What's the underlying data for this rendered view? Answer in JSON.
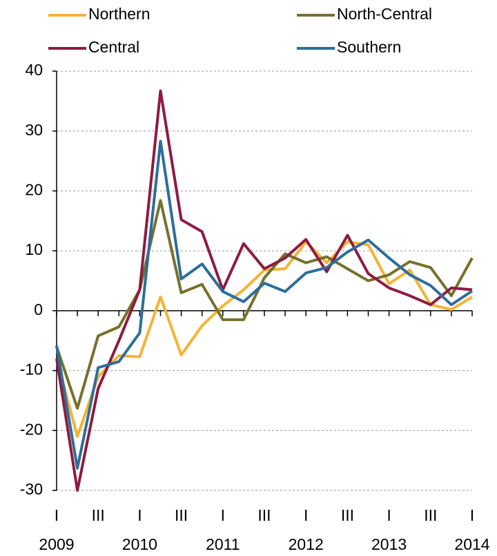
{
  "chart_data": {
    "type": "line",
    "categories": [
      "I",
      null,
      "III",
      null,
      "I",
      null,
      "III",
      null,
      "I",
      null,
      "III",
      null,
      "I",
      null,
      "III",
      null,
      "I",
      null,
      "III",
      null,
      "I"
    ],
    "years": [
      "2009",
      "2010",
      "2011",
      "2012",
      "2013",
      "2014"
    ],
    "series": [
      {
        "name": "Northern",
        "color": "#f5b335",
        "values": [
          -8,
          -21,
          -11,
          -7.5,
          -7.7,
          2.3,
          -7.4,
          -2.5,
          0.8,
          3.5,
          6.8,
          7,
          11.5,
          8,
          11.5,
          11,
          4.5,
          6.8,
          1,
          0.2,
          2.3
        ]
      },
      {
        "name": "North-Central",
        "color": "#76702b",
        "values": [
          -6,
          -16.3,
          -4.2,
          -2.7,
          3.5,
          18.4,
          3,
          4.4,
          -1.5,
          -1.5,
          5.5,
          9.5,
          8,
          9,
          7,
          5,
          6,
          8.2,
          7.2,
          2.5,
          8.8
        ]
      },
      {
        "name": "Central",
        "color": "#8e1b3f",
        "values": [
          -8,
          -30,
          -13,
          -5,
          3.5,
          36.7,
          15.2,
          13.2,
          3.5,
          11.2,
          7,
          8.8,
          11.9,
          6.5,
          12.6,
          6.2,
          3.8,
          2.5,
          1,
          3.8,
          3.5
        ]
      },
      {
        "name": "Southern",
        "color": "#2c6e9c",
        "values": [
          -5.8,
          -26.3,
          -9.5,
          -8.5,
          -3.7,
          28.3,
          5.3,
          7.8,
          3.2,
          1.5,
          4.6,
          3.2,
          6.3,
          7.2,
          9.8,
          11.8,
          8.8,
          6,
          4.2,
          1,
          3.3
        ]
      }
    ],
    "ylim": [
      -30,
      40
    ],
    "yticks": [
      -30,
      -20,
      -10,
      0,
      10,
      20,
      30,
      40
    ],
    "grid": true
  }
}
